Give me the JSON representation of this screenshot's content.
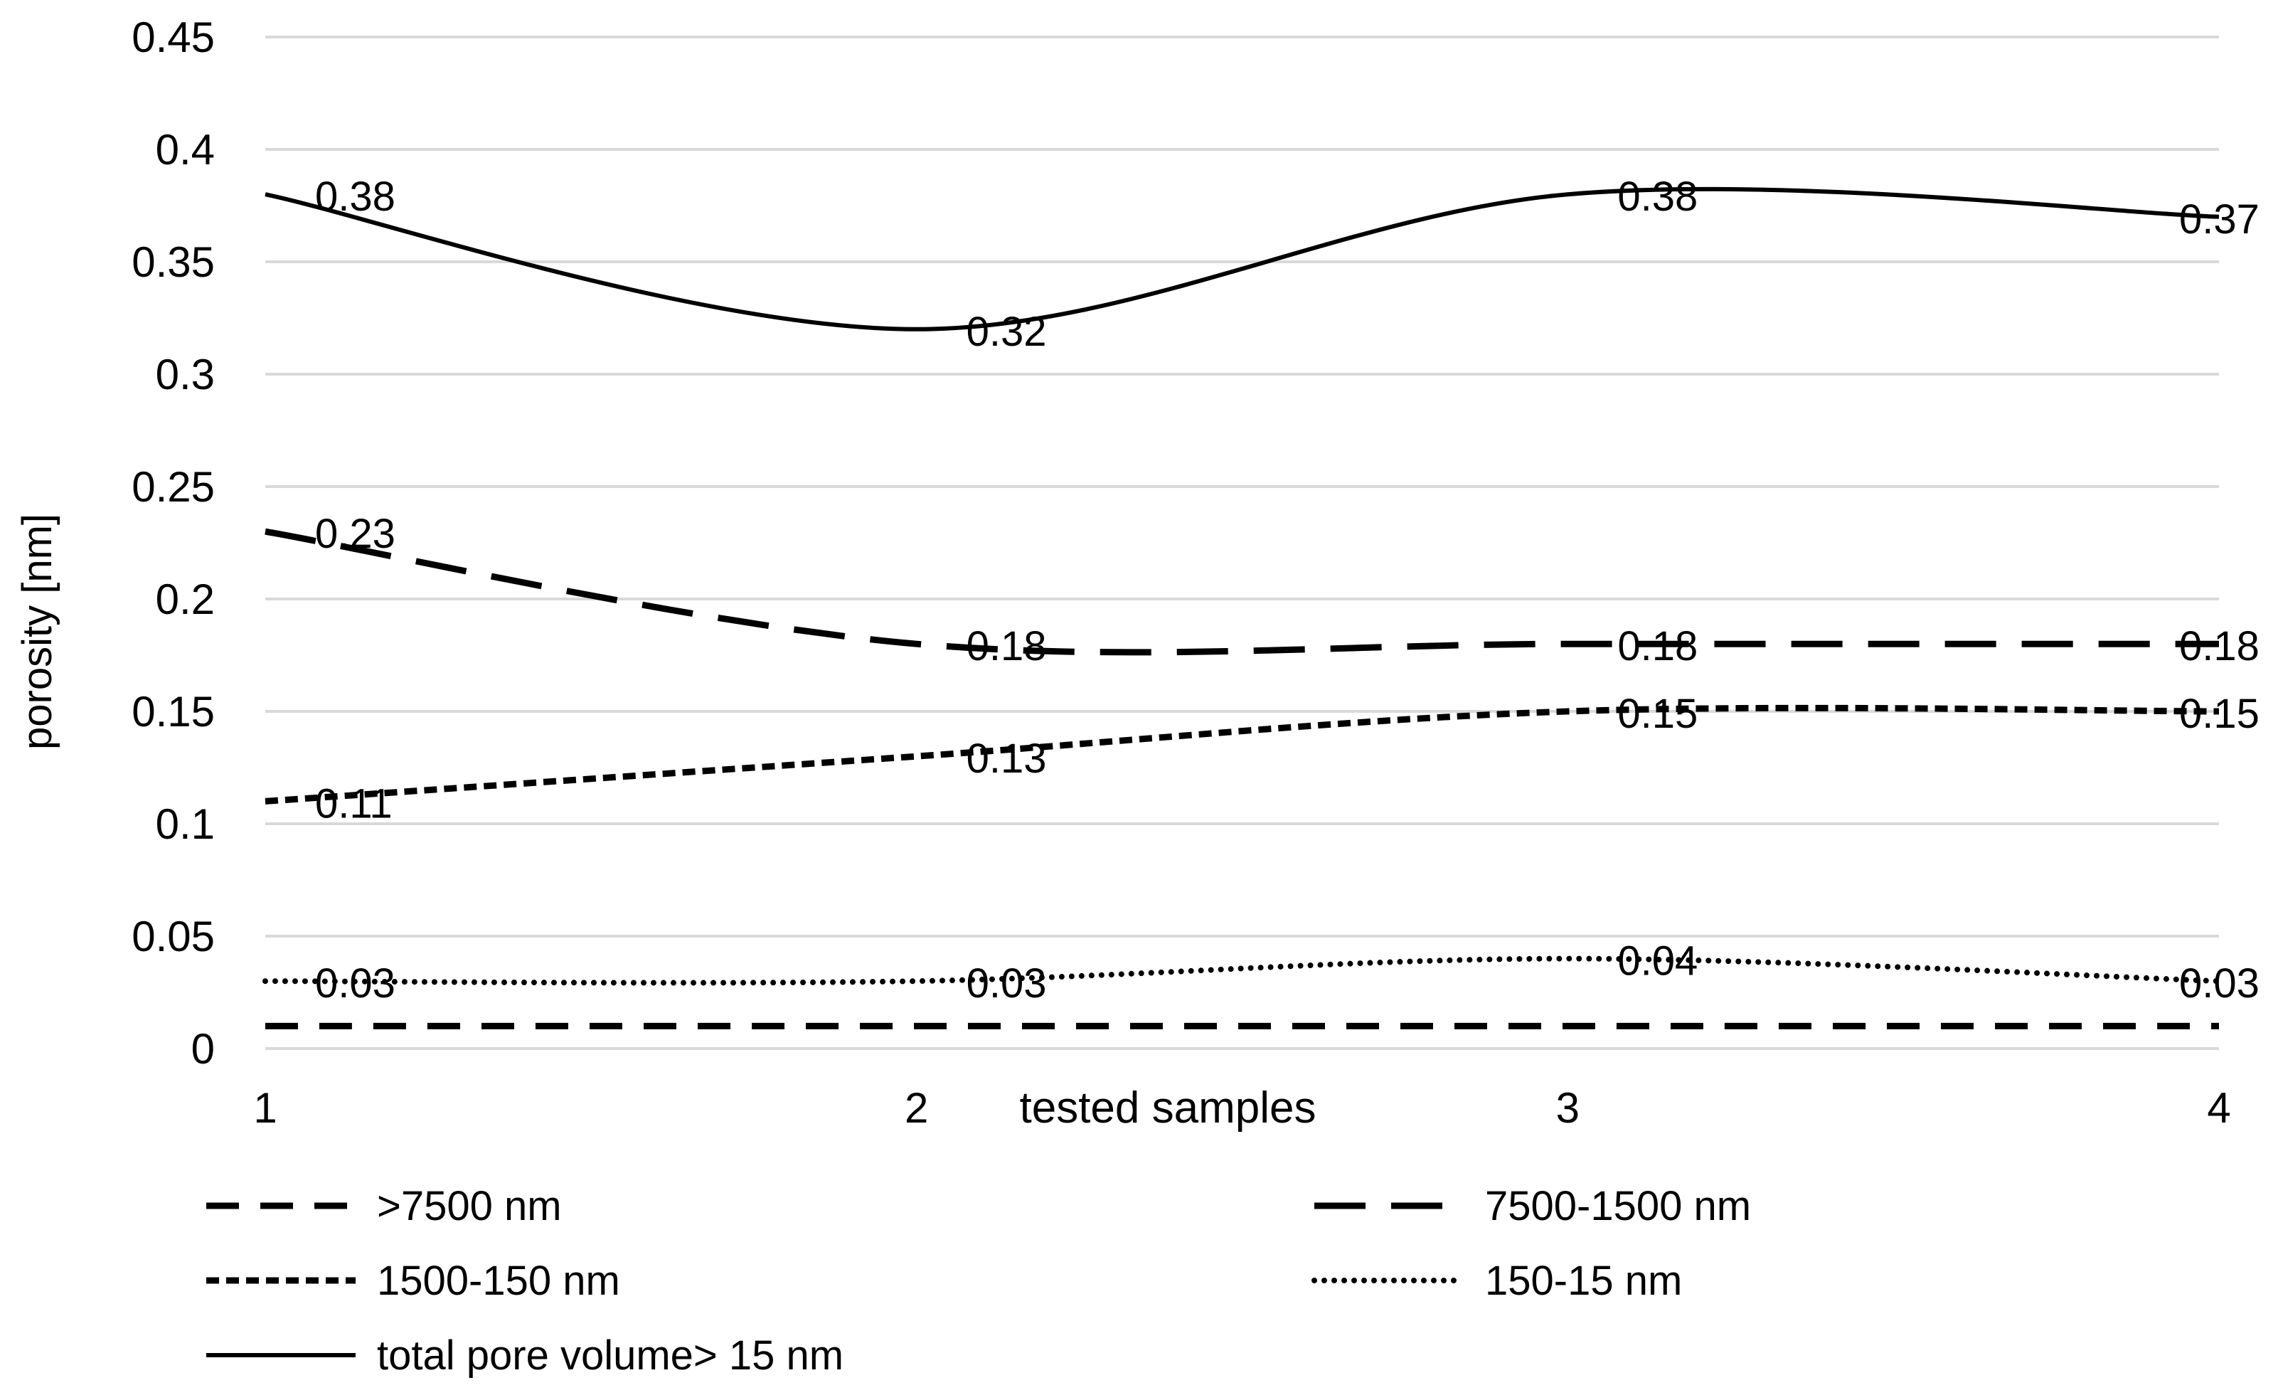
{
  "chart_data": {
    "type": "line",
    "title": "",
    "xlabel": "tested samples",
    "ylabel": "porosity [nm]",
    "categories": [
      "1",
      "2",
      "3",
      "4"
    ],
    "x": [
      1,
      2,
      3,
      4
    ],
    "ylim": [
      0,
      0.45
    ],
    "y_ticks": [
      "0",
      "0.05",
      "0.1",
      "0.15",
      "0.2",
      "0.25",
      "0.3",
      "0.35",
      "0.4",
      "0.45"
    ],
    "grid": true,
    "legend_position": "bottom",
    "series": [
      {
        "name": ">7500 nm",
        "style": "dash",
        "values": [
          0.01,
          0.01,
          0.01,
          0.01
        ],
        "labels": []
      },
      {
        "name": "7500-1500 nm",
        "style": "long-dash",
        "values": [
          0.23,
          0.18,
          0.18,
          0.18
        ],
        "labels": [
          "0.23",
          "0.18",
          "0.18",
          "0.18"
        ]
      },
      {
        "name": "1500-150 nm",
        "style": "short-dash",
        "values": [
          0.11,
          0.13,
          0.15,
          0.15
        ],
        "labels": [
          "0.11",
          "0.13",
          "0.15",
          "0.15"
        ]
      },
      {
        "name": "150-15 nm",
        "style": "dot",
        "values": [
          0.03,
          0.03,
          0.04,
          0.03
        ],
        "labels": [
          "0.03",
          "0.03",
          "0.04",
          "0.03"
        ]
      },
      {
        "name": "total pore volume> 15 nm",
        "style": "solid",
        "values": [
          0.38,
          0.32,
          0.38,
          0.37
        ],
        "labels": [
          "0.38",
          "0.32",
          "0.38",
          "0.37"
        ]
      }
    ]
  }
}
